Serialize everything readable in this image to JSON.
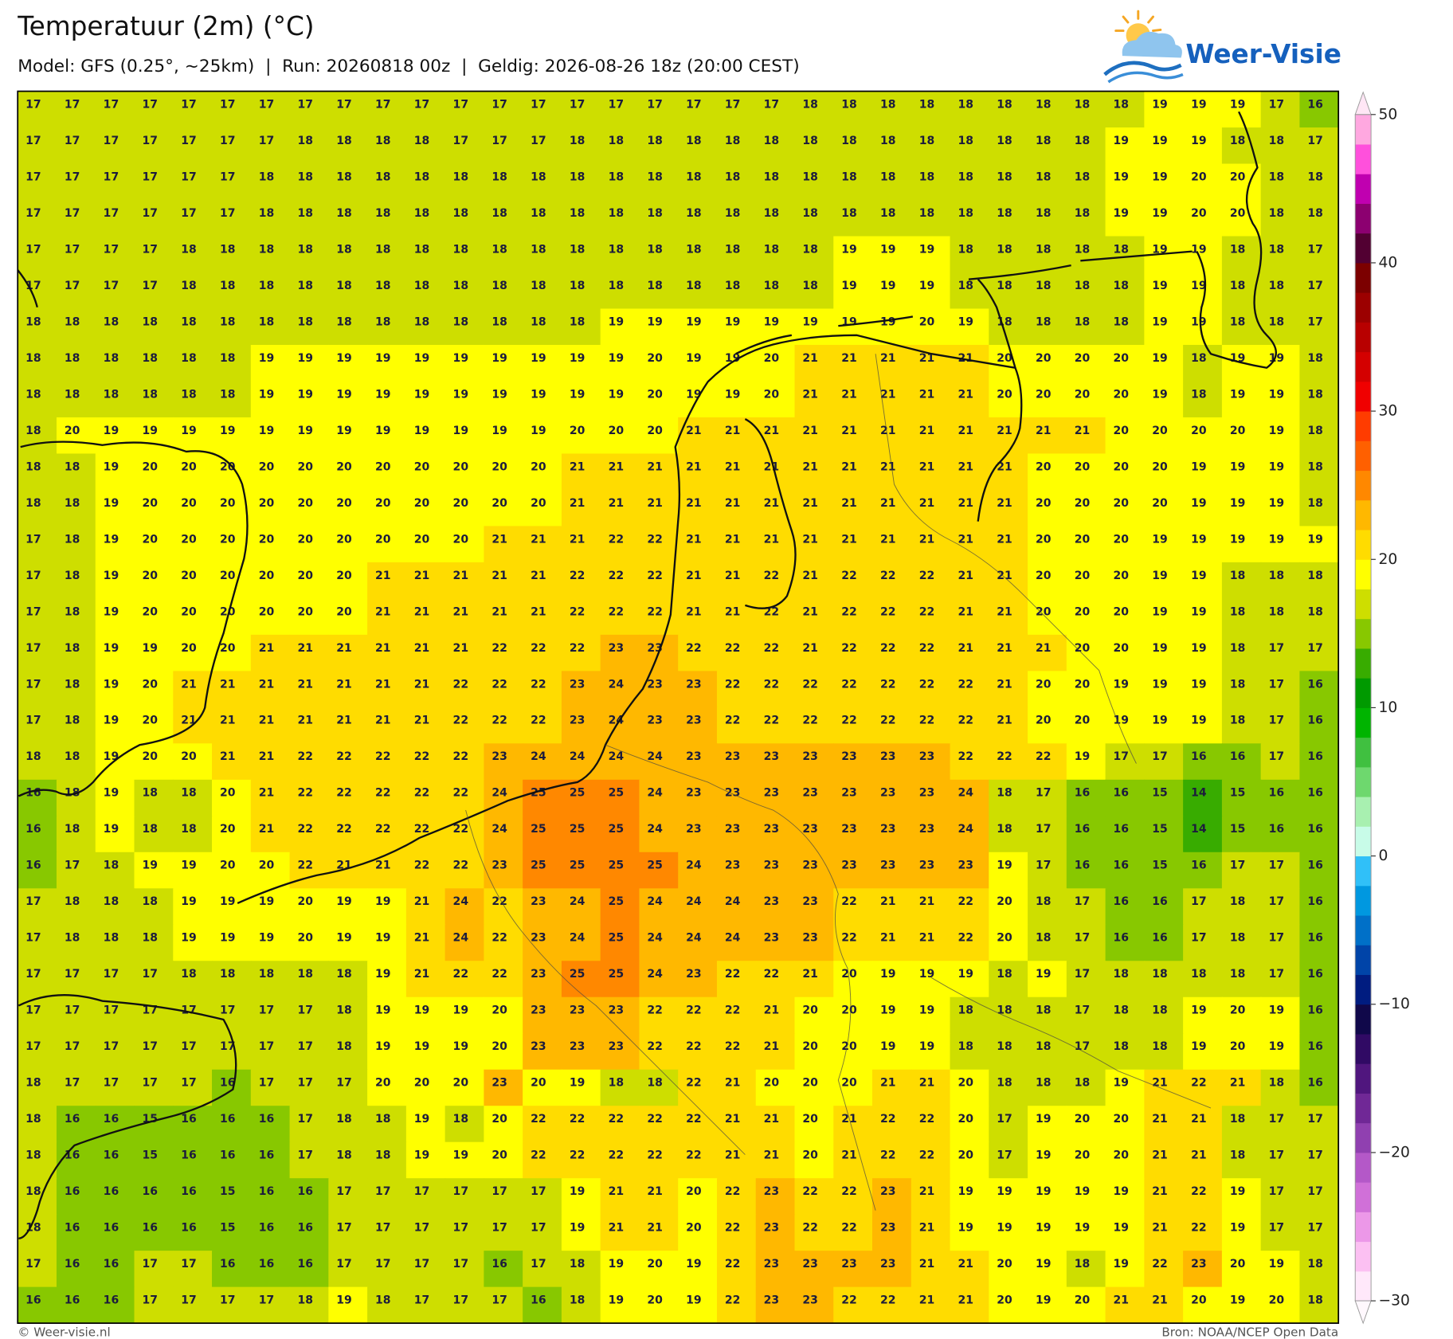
{
  "header": {
    "title": "Temperatuur (2m) (°C)",
    "subtitle": "Model: GFS (0.25°, ~25km)  |  Run: 20260818 00z  |  Geldig: 2026-08-26 18z (20:00 CEST)"
  },
  "logo": {
    "text": "Weer-Visie"
  },
  "map": {
    "rows": [
      [
        17,
        17,
        17,
        17,
        17,
        17,
        17,
        17,
        17,
        17,
        17,
        17,
        17,
        17,
        17,
        17,
        17,
        17,
        17,
        17,
        18,
        18,
        18,
        18,
        18,
        18,
        18,
        18,
        18,
        19,
        19,
        19,
        17,
        16
      ],
      [
        17,
        17,
        17,
        17,
        17,
        17,
        17,
        18,
        18,
        18,
        18,
        17,
        17,
        17,
        18,
        18,
        18,
        18,
        18,
        18,
        18,
        18,
        18,
        18,
        18,
        18,
        18,
        18,
        19,
        19,
        19,
        18,
        18,
        17
      ],
      [
        17,
        17,
        17,
        17,
        17,
        17,
        18,
        18,
        18,
        18,
        18,
        18,
        18,
        18,
        18,
        18,
        18,
        18,
        18,
        18,
        18,
        18,
        18,
        18,
        18,
        18,
        18,
        18,
        19,
        19,
        20,
        20,
        18,
        18
      ],
      [
        17,
        17,
        17,
        17,
        17,
        17,
        18,
        18,
        18,
        18,
        18,
        18,
        18,
        18,
        18,
        18,
        18,
        18,
        18,
        18,
        18,
        18,
        18,
        18,
        18,
        18,
        18,
        18,
        19,
        19,
        20,
        20,
        18,
        18
      ],
      [
        17,
        17,
        17,
        17,
        18,
        18,
        18,
        18,
        18,
        18,
        18,
        18,
        18,
        18,
        18,
        18,
        18,
        18,
        18,
        18,
        18,
        19,
        19,
        19,
        18,
        18,
        18,
        18,
        18,
        19,
        19,
        18,
        18,
        17
      ],
      [
        17,
        17,
        17,
        17,
        18,
        18,
        18,
        18,
        18,
        18,
        18,
        18,
        18,
        18,
        18,
        18,
        18,
        18,
        18,
        18,
        18,
        19,
        19,
        19,
        18,
        18,
        18,
        18,
        18,
        19,
        19,
        18,
        18,
        17
      ],
      [
        18,
        18,
        18,
        18,
        18,
        18,
        18,
        18,
        18,
        18,
        18,
        18,
        18,
        18,
        18,
        19,
        19,
        19,
        19,
        19,
        19,
        19,
        19,
        20,
        19,
        18,
        18,
        18,
        18,
        19,
        19,
        18,
        18,
        17
      ],
      [
        18,
        18,
        18,
        18,
        18,
        18,
        19,
        19,
        19,
        19,
        19,
        19,
        19,
        19,
        19,
        19,
        20,
        19,
        19,
        20,
        21,
        21,
        21,
        21,
        21,
        20,
        20,
        20,
        20,
        19,
        18,
        19,
        19,
        18
      ],
      [
        18,
        18,
        18,
        18,
        18,
        18,
        19,
        19,
        19,
        19,
        19,
        19,
        19,
        19,
        19,
        19,
        20,
        19,
        19,
        20,
        21,
        21,
        21,
        21,
        21,
        20,
        20,
        20,
        20,
        19,
        18,
        19,
        19,
        18
      ],
      [
        18,
        20,
        19,
        19,
        19,
        19,
        19,
        19,
        19,
        19,
        19,
        19,
        19,
        19,
        20,
        20,
        20,
        21,
        21,
        21,
        21,
        21,
        21,
        21,
        21,
        21,
        21,
        21,
        20,
        20,
        20,
        20,
        19,
        18
      ],
      [
        18,
        18,
        19,
        20,
        20,
        20,
        20,
        20,
        20,
        20,
        20,
        20,
        20,
        20,
        21,
        21,
        21,
        21,
        21,
        21,
        21,
        21,
        21,
        21,
        21,
        21,
        20,
        20,
        20,
        20,
        19,
        19,
        19,
        18
      ],
      [
        18,
        18,
        19,
        20,
        20,
        20,
        20,
        20,
        20,
        20,
        20,
        20,
        20,
        20,
        21,
        21,
        21,
        21,
        21,
        21,
        21,
        21,
        21,
        21,
        21,
        21,
        20,
        20,
        20,
        20,
        19,
        19,
        19,
        18
      ],
      [
        17,
        18,
        19,
        20,
        20,
        20,
        20,
        20,
        20,
        20,
        20,
        20,
        21,
        21,
        21,
        22,
        22,
        21,
        21,
        21,
        21,
        21,
        21,
        21,
        21,
        21,
        20,
        20,
        20,
        19,
        19,
        19,
        19,
        19
      ],
      [
        17,
        18,
        19,
        20,
        20,
        20,
        20,
        20,
        20,
        21,
        21,
        21,
        21,
        21,
        22,
        22,
        22,
        21,
        21,
        22,
        21,
        22,
        22,
        22,
        21,
        21,
        20,
        20,
        20,
        19,
        19,
        18,
        18,
        18
      ],
      [
        17,
        18,
        19,
        20,
        20,
        20,
        20,
        20,
        20,
        21,
        21,
        21,
        21,
        21,
        22,
        22,
        22,
        21,
        21,
        22,
        21,
        22,
        22,
        22,
        21,
        21,
        20,
        20,
        20,
        19,
        19,
        18,
        18,
        18
      ],
      [
        17,
        18,
        19,
        19,
        20,
        20,
        21,
        21,
        21,
        21,
        21,
        21,
        22,
        22,
        22,
        23,
        23,
        22,
        22,
        22,
        21,
        22,
        22,
        22,
        21,
        21,
        21,
        20,
        20,
        19,
        19,
        18,
        17,
        17
      ],
      [
        17,
        18,
        19,
        20,
        21,
        21,
        21,
        21,
        21,
        21,
        21,
        22,
        22,
        22,
        23,
        24,
        23,
        23,
        22,
        22,
        22,
        22,
        22,
        22,
        22,
        21,
        20,
        20,
        19,
        19,
        19,
        18,
        17,
        16
      ],
      [
        17,
        18,
        19,
        20,
        21,
        21,
        21,
        21,
        21,
        21,
        21,
        22,
        22,
        22,
        23,
        24,
        23,
        23,
        22,
        22,
        22,
        22,
        22,
        22,
        22,
        21,
        20,
        20,
        19,
        19,
        19,
        18,
        17,
        16
      ],
      [
        18,
        18,
        19,
        20,
        20,
        21,
        21,
        22,
        22,
        22,
        22,
        22,
        23,
        24,
        24,
        24,
        24,
        23,
        23,
        23,
        23,
        23,
        23,
        23,
        22,
        22,
        22,
        19,
        17,
        17,
        16,
        16,
        17,
        16
      ],
      [
        16,
        18,
        19,
        18,
        18,
        20,
        21,
        22,
        22,
        22,
        22,
        22,
        24,
        25,
        25,
        25,
        24,
        23,
        23,
        23,
        23,
        23,
        23,
        23,
        24,
        18,
        17,
        16,
        16,
        15,
        14,
        15,
        16,
        16
      ],
      [
        16,
        18,
        19,
        18,
        18,
        20,
        21,
        22,
        22,
        22,
        22,
        22,
        24,
        25,
        25,
        25,
        24,
        23,
        23,
        23,
        23,
        23,
        23,
        23,
        24,
        18,
        17,
        16,
        16,
        15,
        14,
        15,
        16,
        16
      ],
      [
        16,
        17,
        18,
        19,
        19,
        20,
        20,
        22,
        21,
        21,
        22,
        22,
        23,
        25,
        25,
        25,
        25,
        24,
        23,
        23,
        23,
        23,
        23,
        23,
        23,
        19,
        17,
        16,
        16,
        15,
        16,
        17,
        17,
        16
      ],
      [
        17,
        18,
        18,
        18,
        19,
        19,
        19,
        20,
        19,
        19,
        21,
        24,
        22,
        23,
        24,
        25,
        24,
        24,
        24,
        23,
        23,
        22,
        21,
        21,
        22,
        20,
        18,
        17,
        16,
        16,
        17,
        18,
        17,
        16
      ],
      [
        17,
        18,
        18,
        18,
        19,
        19,
        19,
        20,
        19,
        19,
        21,
        24,
        22,
        23,
        24,
        25,
        24,
        24,
        24,
        23,
        23,
        22,
        21,
        21,
        22,
        20,
        18,
        17,
        16,
        16,
        17,
        18,
        17,
        16
      ],
      [
        17,
        17,
        17,
        17,
        18,
        18,
        18,
        18,
        18,
        19,
        21,
        22,
        22,
        23,
        25,
        25,
        24,
        23,
        22,
        22,
        21,
        20,
        19,
        19,
        19,
        18,
        19,
        17,
        18,
        18,
        18,
        18,
        17,
        16
      ],
      [
        17,
        17,
        17,
        17,
        17,
        17,
        17,
        17,
        18,
        19,
        19,
        19,
        20,
        23,
        23,
        23,
        22,
        22,
        22,
        21,
        20,
        20,
        19,
        19,
        18,
        18,
        18,
        17,
        18,
        18,
        19,
        20,
        19,
        16
      ],
      [
        17,
        17,
        17,
        17,
        17,
        17,
        17,
        17,
        18,
        19,
        19,
        19,
        20,
        23,
        23,
        23,
        22,
        22,
        22,
        21,
        20,
        20,
        19,
        19,
        18,
        18,
        18,
        17,
        18,
        18,
        19,
        20,
        19,
        16
      ],
      [
        18,
        17,
        17,
        17,
        17,
        16,
        17,
        17,
        17,
        20,
        20,
        20,
        23,
        20,
        19,
        18,
        18,
        22,
        21,
        20,
        20,
        20,
        21,
        21,
        20,
        18,
        18,
        18,
        19,
        21,
        22,
        21,
        18,
        16
      ],
      [
        18,
        16,
        16,
        15,
        16,
        16,
        16,
        17,
        18,
        18,
        19,
        18,
        20,
        22,
        22,
        22,
        22,
        22,
        21,
        21,
        20,
        21,
        22,
        22,
        20,
        17,
        19,
        20,
        20,
        21,
        21,
        18,
        17,
        17
      ],
      [
        18,
        16,
        16,
        15,
        16,
        16,
        16,
        17,
        18,
        18,
        19,
        19,
        20,
        22,
        22,
        22,
        22,
        22,
        21,
        21,
        20,
        21,
        22,
        22,
        20,
        17,
        19,
        20,
        20,
        21,
        21,
        18,
        17,
        17
      ],
      [
        18,
        16,
        16,
        16,
        16,
        15,
        16,
        16,
        17,
        17,
        17,
        17,
        17,
        17,
        19,
        21,
        21,
        20,
        22,
        23,
        22,
        22,
        23,
        21,
        19,
        19,
        19,
        19,
        19,
        21,
        22,
        19,
        17,
        17
      ],
      [
        18,
        16,
        16,
        16,
        16,
        15,
        16,
        16,
        17,
        17,
        17,
        17,
        17,
        17,
        19,
        21,
        21,
        20,
        22,
        23,
        22,
        22,
        23,
        21,
        19,
        19,
        19,
        19,
        19,
        21,
        22,
        19,
        17,
        17
      ],
      [
        17,
        16,
        16,
        17,
        17,
        16,
        16,
        16,
        17,
        17,
        17,
        17,
        16,
        17,
        18,
        19,
        20,
        19,
        22,
        23,
        23,
        23,
        23,
        21,
        21,
        20,
        19,
        18,
        19,
        22,
        23,
        20,
        19,
        18
      ],
      [
        16,
        16,
        16,
        17,
        17,
        17,
        17,
        18,
        19,
        18,
        17,
        17,
        17,
        16,
        18,
        19,
        20,
        19,
        22,
        23,
        23,
        22,
        22,
        21,
        21,
        20,
        19,
        20,
        21,
        21,
        20,
        19,
        20,
        18
      ]
    ]
  },
  "colorbar": {
    "ticks": [
      50,
      40,
      30,
      20,
      10,
      0,
      {
        "value": -10,
        "label": "−10"
      },
      {
        "value": -20,
        "label": "−20"
      },
      {
        "value": -30,
        "label": "−30"
      }
    ],
    "colors": [
      "#ffe8fa",
      "#fcc0f2",
      "#ec98e8",
      "#d070d8",
      "#b458c8",
      "#9040b0",
      "#702896",
      "#50167e",
      "#300a64",
      "#10084a",
      "#001c80",
      "#0044a8",
      "#0070c8",
      "#0098e0",
      "#30c0f8",
      "#c8fce8",
      "#a8f0b0",
      "#6ed86e",
      "#40c040",
      "#00b400",
      "#009a00",
      "#38ac00",
      "#88c800",
      "#cede00",
      "#ffff00",
      "#ffdc00",
      "#ffb800",
      "#ff8800",
      "#ff6000",
      "#ff3c00",
      "#f00000",
      "#d40000",
      "#b80000",
      "#9c0000",
      "#7c0000",
      "#520032",
      "#8c0070",
      "#c000b0",
      "#ff50dc",
      "#ffa8e0"
    ]
  },
  "footer": {
    "left": "© Weer-visie.nl",
    "right": "Bron: NOAA/NCEP Open Data"
  }
}
